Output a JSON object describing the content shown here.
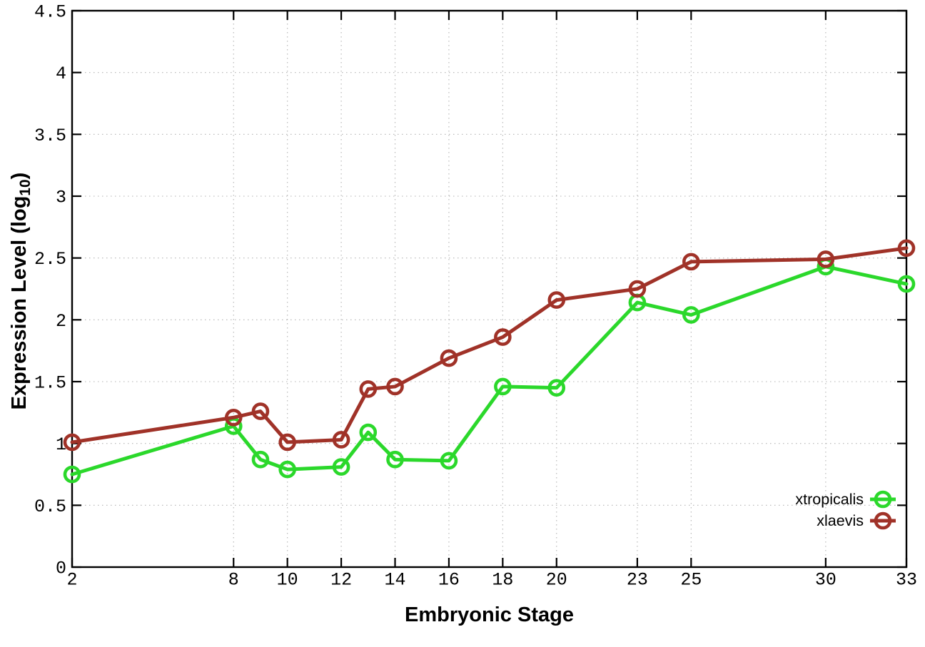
{
  "figure": {
    "background": "#ffffff",
    "xlabel": "Embryonic Stage",
    "ylabel_prefix": "Expression Level (log",
    "ylabel_sub": "10",
    "ylabel_suffix": ")"
  },
  "chart_data": {
    "type": "line",
    "title": "",
    "xlabel": "Embryonic Stage",
    "ylabel": "Expression Level (log_10)",
    "grid": true,
    "legend_position": "bottom-right",
    "xlim": [
      2,
      33
    ],
    "ylim": [
      0,
      4.5
    ],
    "x": [
      2,
      8,
      9,
      10,
      12,
      13,
      14,
      16,
      18,
      20,
      23,
      25,
      30,
      33
    ],
    "xticks": [
      2,
      8,
      10,
      12,
      14,
      16,
      18,
      20,
      23,
      25,
      30,
      33
    ],
    "xtick_labels": [
      "2",
      "8",
      "10",
      "12",
      "14",
      "16",
      "18",
      "20",
      "23",
      "25",
      "30",
      "33"
    ],
    "yticks": [
      0,
      0.5,
      1,
      1.5,
      2,
      2.5,
      3,
      3.5,
      4,
      4.5
    ],
    "ytick_labels": [
      "0",
      "0.5",
      "1",
      "1.5",
      "2",
      "2.5",
      "3",
      "3.5",
      "4",
      "4.5"
    ],
    "series": [
      {
        "name": "xtropicalis",
        "color": "#2bd82b",
        "marker": "open-circle",
        "values": [
          0.75,
          1.14,
          0.87,
          0.79,
          0.81,
          1.09,
          0.87,
          0.86,
          1.46,
          1.45,
          2.14,
          2.04,
          2.43,
          2.29
        ]
      },
      {
        "name": "xlaevis",
        "color": "#a03228",
        "marker": "open-circle",
        "values": [
          1.01,
          1.21,
          1.26,
          1.01,
          1.03,
          1.44,
          1.46,
          1.69,
          1.86,
          2.16,
          2.25,
          2.47,
          2.49,
          2.58
        ]
      }
    ]
  }
}
